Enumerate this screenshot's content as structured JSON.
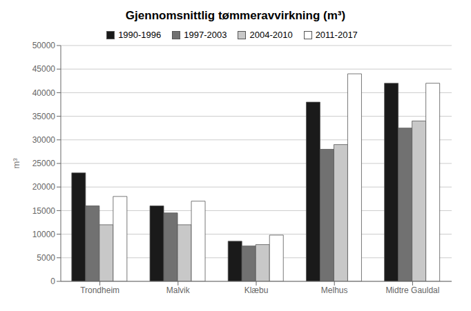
{
  "chart_data": {
    "type": "bar",
    "title": "Gjennomsnittlig tømmeravvirkning (m³)",
    "ylabel": "m³",
    "categories": [
      "Trondheim",
      "Malvik",
      "Klæbu",
      "Melhus",
      "Midtre Gauldal"
    ],
    "series": [
      {
        "name": "1990-1996",
        "color": "#1a1a1a",
        "values": [
          23000,
          16000,
          8500,
          38000,
          42000
        ]
      },
      {
        "name": "1997-2003",
        "color": "#717171",
        "values": [
          16000,
          14500,
          7500,
          28000,
          32500
        ]
      },
      {
        "name": "2004-2010",
        "color": "#c8c8c8",
        "values": [
          12000,
          12000,
          7800,
          29000,
          34000
        ]
      },
      {
        "name": "2011-2017",
        "color": "#ffffff",
        "values": [
          18000,
          17000,
          9800,
          44000,
          42000
        ]
      }
    ],
    "ylim": [
      0,
      50000
    ],
    "yticks": [
      0,
      5000,
      10000,
      15000,
      20000,
      25000,
      30000,
      35000,
      40000,
      45000,
      50000
    ],
    "grid": true,
    "legend": "top"
  }
}
